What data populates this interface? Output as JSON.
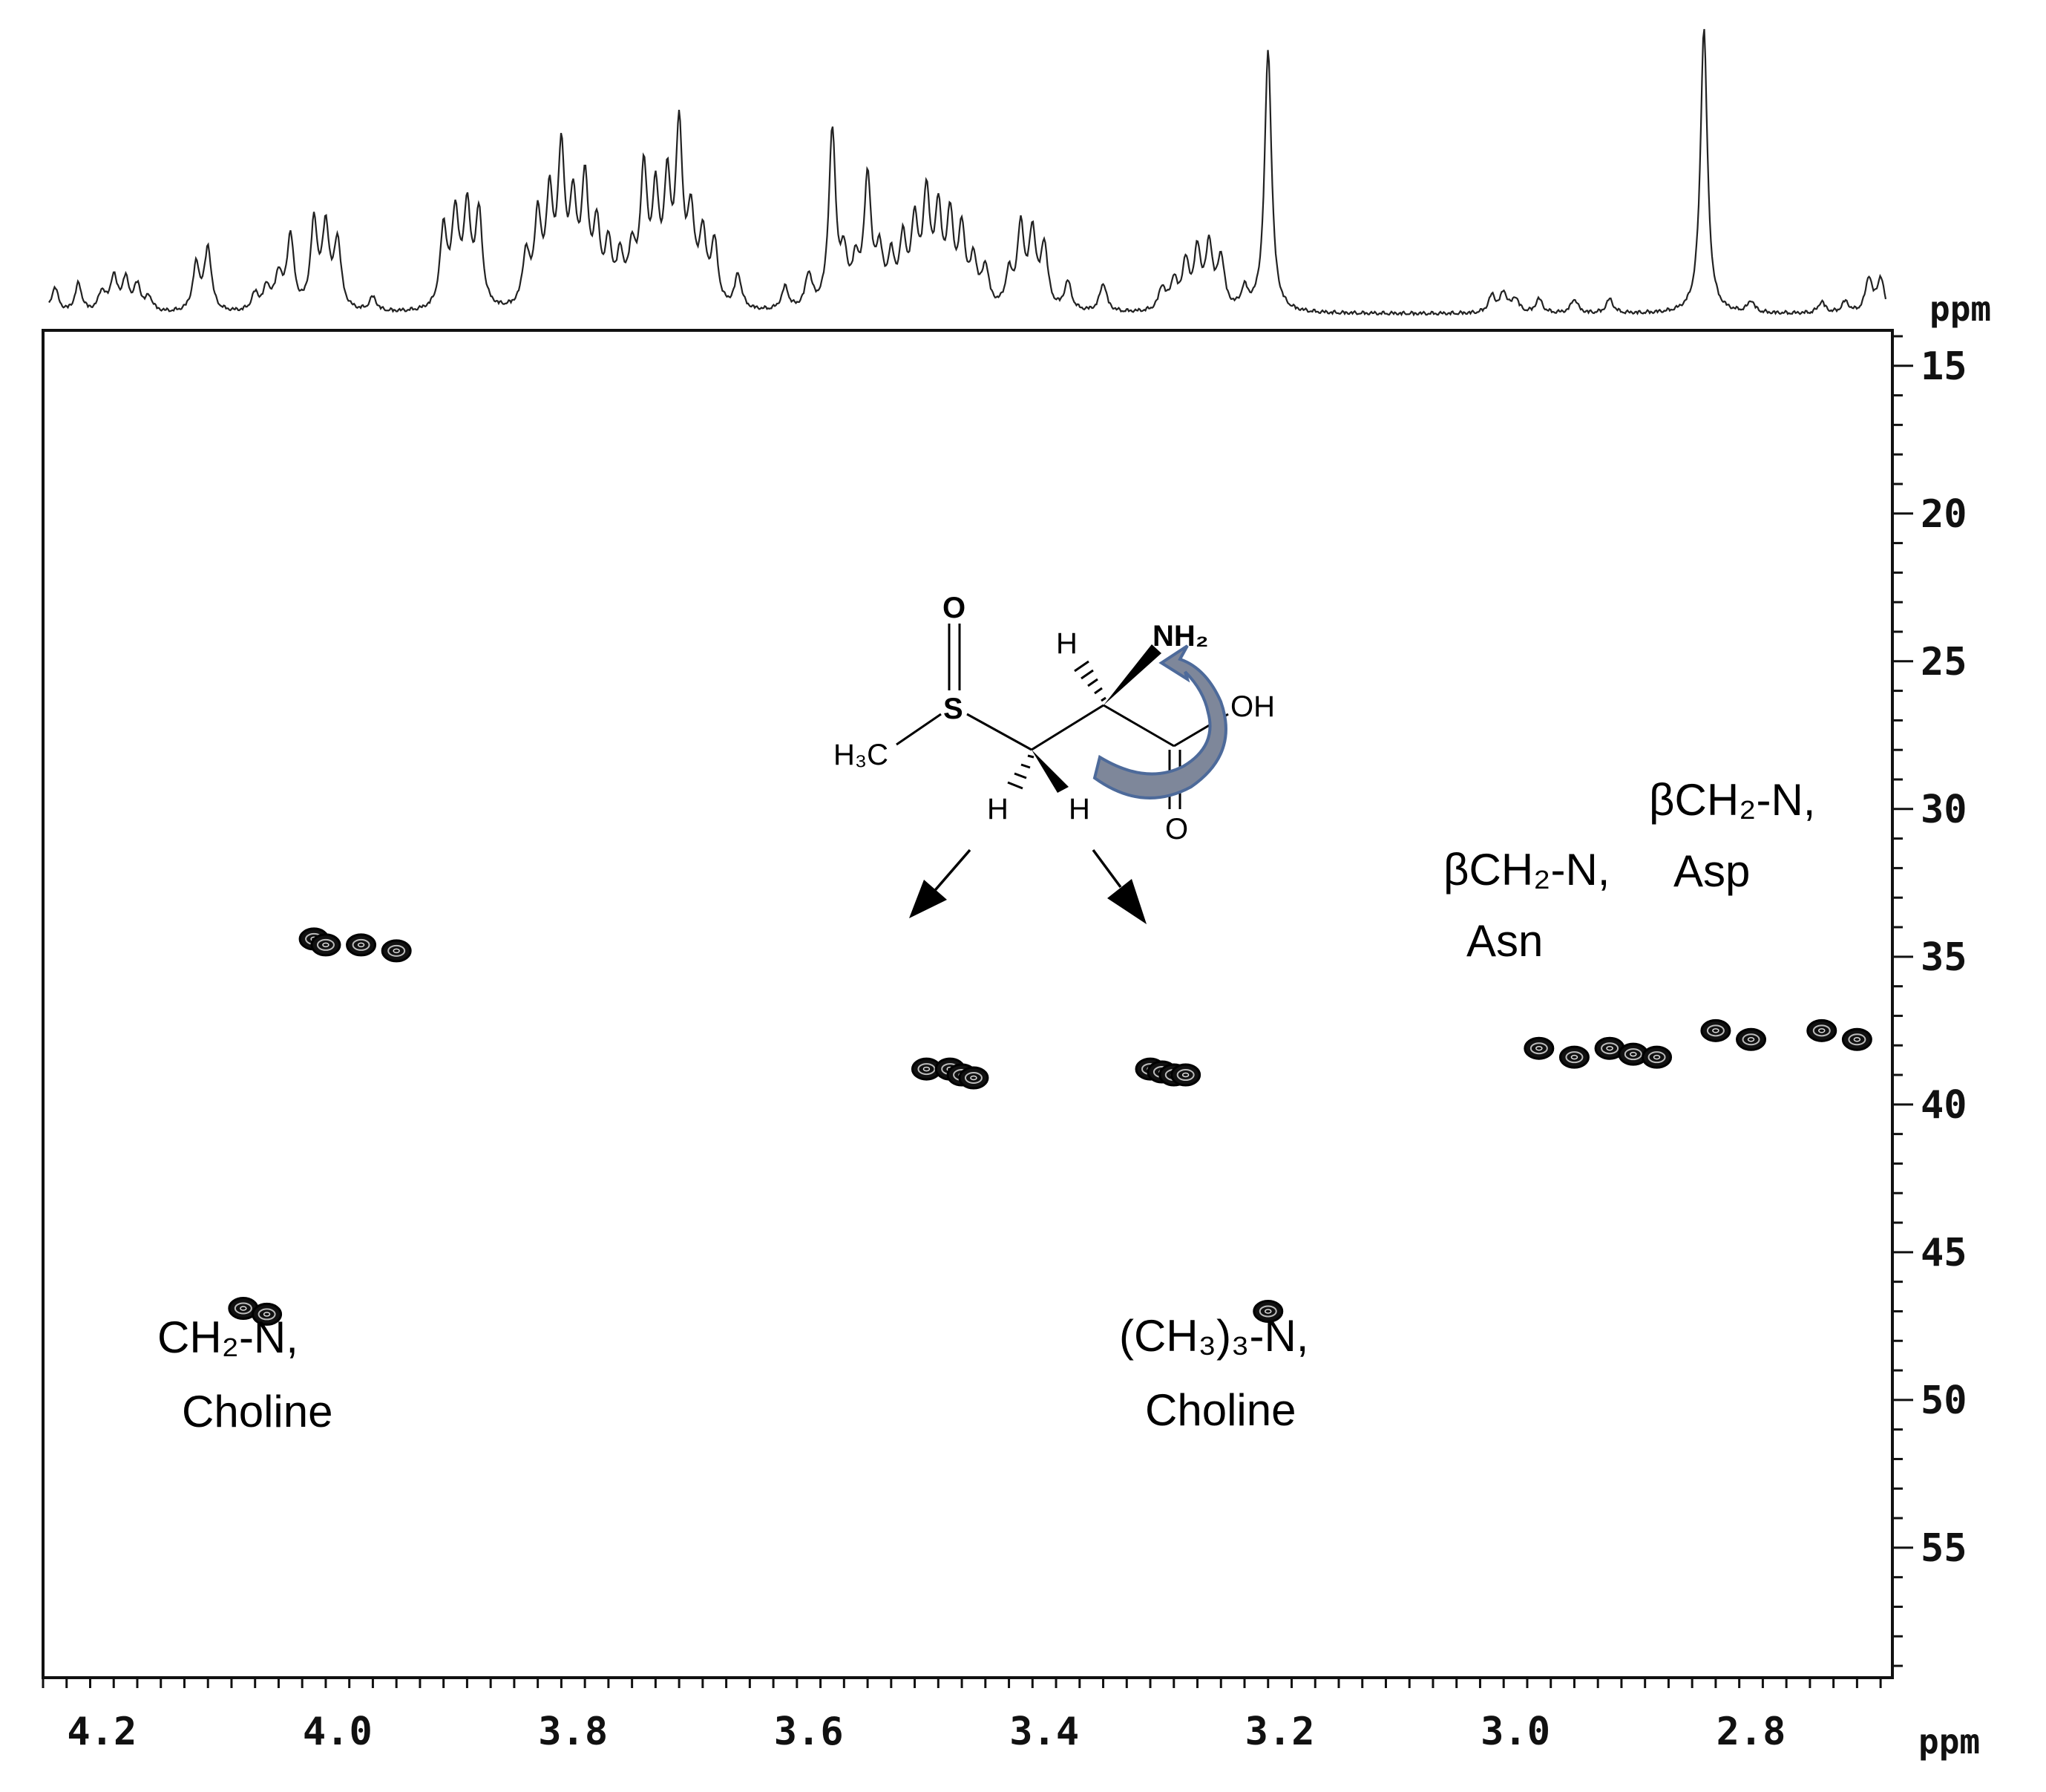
{
  "chart_data": {
    "type": "heatmap",
    "xlabel": "ppm",
    "ylabel": "ppm",
    "x_axis": {
      "range": [
        4.25,
        2.68
      ],
      "reversed": true,
      "ticks": [
        4.2,
        4.0,
        3.8,
        3.6,
        3.4,
        3.2,
        3.0,
        2.8
      ],
      "tick_labels": [
        "4.2",
        "4.0",
        "3.8",
        "3.6",
        "3.4",
        "3.2",
        "3.0",
        "2.8"
      ]
    },
    "y_axis": {
      "range": [
        13.8,
        59.4
      ],
      "reversed": true,
      "position": "right",
      "ticks": [
        15,
        20,
        25,
        30,
        35,
        40,
        45,
        50,
        55
      ],
      "tick_labels": [
        "15",
        "20",
        "25",
        "30",
        "35",
        "40",
        "45",
        "50",
        "55"
      ]
    },
    "cross_peaks": [
      {
        "x": 4.02,
        "y": 34.4
      },
      {
        "x": 4.01,
        "y": 34.6
      },
      {
        "x": 3.98,
        "y": 34.6
      },
      {
        "x": 3.95,
        "y": 34.8
      },
      {
        "x": 3.5,
        "y": 38.8
      },
      {
        "x": 3.48,
        "y": 38.8
      },
      {
        "x": 3.47,
        "y": 39.0
      },
      {
        "x": 3.46,
        "y": 39.1
      },
      {
        "x": 3.31,
        "y": 38.8
      },
      {
        "x": 3.3,
        "y": 38.9
      },
      {
        "x": 3.29,
        "y": 39.0
      },
      {
        "x": 3.28,
        "y": 39.0
      },
      {
        "x": 2.98,
        "y": 38.1
      },
      {
        "x": 2.95,
        "y": 38.4
      },
      {
        "x": 2.92,
        "y": 38.1
      },
      {
        "x": 2.9,
        "y": 38.3
      },
      {
        "x": 2.88,
        "y": 38.4
      },
      {
        "x": 2.83,
        "y": 37.5
      },
      {
        "x": 2.8,
        "y": 37.8
      },
      {
        "x": 2.74,
        "y": 37.5
      },
      {
        "x": 2.71,
        "y": 37.8
      },
      {
        "x": 4.08,
        "y": 46.9
      },
      {
        "x": 4.06,
        "y": 47.1
      },
      {
        "x": 3.21,
        "y": 47.0
      }
    ],
    "spectrum_1d": {
      "peaks": [
        {
          "x": 4.24,
          "h": 0.09
        },
        {
          "x": 4.22,
          "h": 0.1
        },
        {
          "x": 4.2,
          "h": 0.07
        },
        {
          "x": 4.19,
          "h": 0.12
        },
        {
          "x": 4.18,
          "h": 0.11
        },
        {
          "x": 4.17,
          "h": 0.09
        },
        {
          "x": 4.16,
          "h": 0.05
        },
        {
          "x": 4.12,
          "h": 0.16
        },
        {
          "x": 4.11,
          "h": 0.22
        },
        {
          "x": 4.07,
          "h": 0.06
        },
        {
          "x": 4.06,
          "h": 0.08
        },
        {
          "x": 4.05,
          "h": 0.12
        },
        {
          "x": 4.04,
          "h": 0.26
        },
        {
          "x": 4.02,
          "h": 0.3
        },
        {
          "x": 4.01,
          "h": 0.28
        },
        {
          "x": 4.0,
          "h": 0.24
        },
        {
          "x": 3.97,
          "h": 0.05
        },
        {
          "x": 3.91,
          "h": 0.28
        },
        {
          "x": 3.9,
          "h": 0.32
        },
        {
          "x": 3.89,
          "h": 0.34
        },
        {
          "x": 3.88,
          "h": 0.33
        },
        {
          "x": 3.84,
          "h": 0.18
        },
        {
          "x": 3.83,
          "h": 0.3
        },
        {
          "x": 3.82,
          "h": 0.36
        },
        {
          "x": 3.81,
          "h": 0.52
        },
        {
          "x": 3.8,
          "h": 0.34
        },
        {
          "x": 3.79,
          "h": 0.42
        },
        {
          "x": 3.78,
          "h": 0.26
        },
        {
          "x": 3.77,
          "h": 0.2
        },
        {
          "x": 3.76,
          "h": 0.16
        },
        {
          "x": 3.75,
          "h": 0.18
        },
        {
          "x": 3.74,
          "h": 0.46
        },
        {
          "x": 3.73,
          "h": 0.36
        },
        {
          "x": 3.72,
          "h": 0.4
        },
        {
          "x": 3.71,
          "h": 0.6
        },
        {
          "x": 3.7,
          "h": 0.3
        },
        {
          "x": 3.69,
          "h": 0.24
        },
        {
          "x": 3.68,
          "h": 0.22
        },
        {
          "x": 3.66,
          "h": 0.12
        },
        {
          "x": 3.62,
          "h": 0.08
        },
        {
          "x": 3.6,
          "h": 0.12
        },
        {
          "x": 3.58,
          "h": 0.62
        },
        {
          "x": 3.57,
          "h": 0.16
        },
        {
          "x": 3.56,
          "h": 0.14
        },
        {
          "x": 3.55,
          "h": 0.45
        },
        {
          "x": 3.54,
          "h": 0.18
        },
        {
          "x": 3.53,
          "h": 0.16
        },
        {
          "x": 3.52,
          "h": 0.22
        },
        {
          "x": 3.51,
          "h": 0.28
        },
        {
          "x": 3.5,
          "h": 0.38
        },
        {
          "x": 3.49,
          "h": 0.32
        },
        {
          "x": 3.48,
          "h": 0.3
        },
        {
          "x": 3.47,
          "h": 0.26
        },
        {
          "x": 3.46,
          "h": 0.16
        },
        {
          "x": 3.45,
          "h": 0.14
        },
        {
          "x": 3.43,
          "h": 0.12
        },
        {
          "x": 3.42,
          "h": 0.28
        },
        {
          "x": 3.41,
          "h": 0.26
        },
        {
          "x": 3.4,
          "h": 0.22
        },
        {
          "x": 3.38,
          "h": 0.1
        },
        {
          "x": 3.35,
          "h": 0.1
        },
        {
          "x": 3.3,
          "h": 0.08
        },
        {
          "x": 3.29,
          "h": 0.1
        },
        {
          "x": 3.28,
          "h": 0.16
        },
        {
          "x": 3.27,
          "h": 0.2
        },
        {
          "x": 3.26,
          "h": 0.22
        },
        {
          "x": 3.25,
          "h": 0.18
        },
        {
          "x": 3.23,
          "h": 0.07
        },
        {
          "x": 3.21,
          "h": 0.92
        },
        {
          "x": 3.02,
          "h": 0.06
        },
        {
          "x": 3.01,
          "h": 0.07
        },
        {
          "x": 3.0,
          "h": 0.05
        },
        {
          "x": 2.98,
          "h": 0.05
        },
        {
          "x": 2.95,
          "h": 0.05
        },
        {
          "x": 2.92,
          "h": 0.05
        },
        {
          "x": 2.84,
          "h": 1.0
        },
        {
          "x": 2.8,
          "h": 0.04
        },
        {
          "x": 2.74,
          "h": 0.04
        },
        {
          "x": 2.72,
          "h": 0.04
        },
        {
          "x": 2.7,
          "h": 0.12
        },
        {
          "x": 2.69,
          "h": 0.12
        }
      ]
    },
    "annotations": [
      {
        "id": "choline-ch2",
        "line1": "CH₂-N,",
        "line2": "Choline"
      },
      {
        "id": "choline-ch3",
        "line1": "(CH₃)₃-N,",
        "line2": "Choline"
      },
      {
        "id": "asn",
        "line1": "βCH₂-N,",
        "line2": "Asn"
      },
      {
        "id": "asp",
        "line1": "βCH₂-N,",
        "line2": "Asp"
      }
    ],
    "structure": {
      "labels": {
        "oxygen_top": "O",
        "sulfur": "S",
        "methyl": "H₃C",
        "amine": "NH₂",
        "hydroxyl": "OH",
        "carbonyl_oxygen": "O",
        "h_alpha": "H",
        "h_beta_left": "H",
        "h_beta_right": "H"
      },
      "colors": {
        "oxygen_top": "#1414e6",
        "sulfur": "#1414e6",
        "amine": "#e6141e",
        "arrow": "#4d6a9a"
      }
    }
  }
}
